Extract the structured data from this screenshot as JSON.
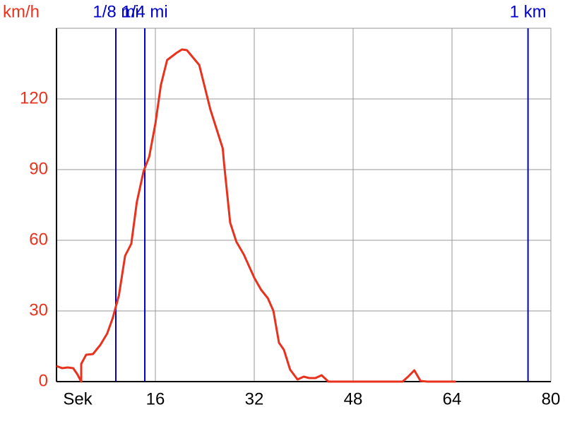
{
  "chart_data": {
    "type": "line",
    "ylabel": "km/h",
    "xlabel": "Sek",
    "xlim": [
      0,
      80
    ],
    "xticks": [
      16,
      32,
      48,
      64,
      80
    ],
    "ylim": [
      0,
      150
    ],
    "yticks": [
      0,
      30,
      60,
      90,
      120
    ],
    "grid": true,
    "series": [
      {
        "color": "#e8321e",
        "x": [
          0,
          0.9,
          1.8,
          2.7,
          3.4,
          4.0,
          4.0,
          4.8,
          5.9,
          7.1,
          8.2,
          9.1,
          10.1,
          11.1,
          12.1,
          13.0,
          14.1,
          15.0,
          16,
          16.9,
          17.9,
          19.4,
          20.3,
          21.1,
          23.1,
          24.9,
          26.9,
          27.1,
          28.1,
          29.1,
          30.3,
          32,
          33.1,
          34.2,
          35.1,
          36,
          36.8,
          37.8,
          39,
          40,
          40.9,
          41.9,
          42.9,
          44,
          56,
          56.9,
          57.9,
          58.9,
          60,
          64.6
        ],
        "values": [
          6.6,
          5.7,
          6,
          5.7,
          3,
          0,
          7.5,
          11.4,
          11.7,
          15.6,
          20.4,
          27,
          36.6,
          53.4,
          58.5,
          76.2,
          89.4,
          95.4,
          109.5,
          126,
          136.5,
          139.5,
          141,
          140.7,
          134.4,
          115.5,
          99,
          93,
          67.5,
          59.4,
          54,
          44.1,
          39,
          35.4,
          30,
          16.5,
          13.5,
          5.1,
          0.9,
          2.1,
          1.5,
          1.5,
          2.7,
          0,
          0,
          2.1,
          4.8,
          0.3,
          0,
          0
        ]
      }
    ],
    "markers": [
      {
        "label": "1/8 mi",
        "x": 9.6,
        "color": "#0000cc"
      },
      {
        "label": "1/4 mi",
        "x": 14.29,
        "color": "#0000cc"
      },
      {
        "label": "1 km",
        "x": 76.3,
        "color": "#0000cc"
      }
    ]
  }
}
